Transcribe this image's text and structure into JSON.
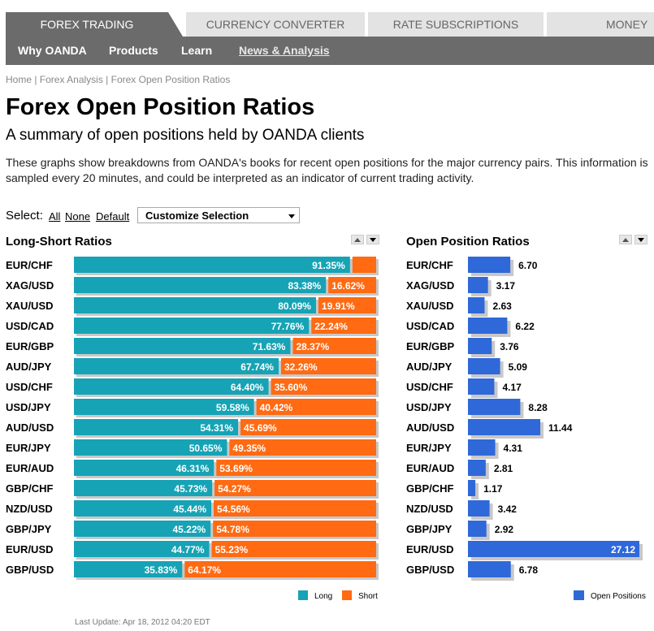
{
  "nav": {
    "tabs": [
      "FOREX TRADING",
      "CURRENCY CONVERTER",
      "RATE SUBSCRIPTIONS",
      "MONEY T"
    ],
    "subnav": [
      "Why OANDA",
      "Products",
      "Learn",
      "News & Analysis"
    ]
  },
  "breadcrumb": "Home | Forex Analysis | Forex Open Position Ratios",
  "page": {
    "title": "Forex Open Position Ratios",
    "subtitle": "A summary of open positions held by OANDA clients",
    "intro": "These graphs show breakdowns from OANDA's books for recent open positions for the major currency pairs. This information is sampled every 20 minutes, and could be interpreted as an indicator of current trading activity."
  },
  "select": {
    "label": "Select:",
    "all": "All",
    "none": "None",
    "default": "Default",
    "customize": "Customize Selection"
  },
  "colors": {
    "long": "#16a3b5",
    "short": "#ff6a12",
    "open": "#2f68d9",
    "shadow": "#c8c8c8"
  },
  "chart_data": [
    {
      "type": "bar",
      "title": "Long-Short Ratios",
      "categories": [
        "EUR/CHF",
        "XAG/USD",
        "XAU/USD",
        "USD/CAD",
        "EUR/GBP",
        "AUD/JPY",
        "USD/CHF",
        "USD/JPY",
        "AUD/USD",
        "EUR/JPY",
        "EUR/AUD",
        "GBP/CHF",
        "NZD/USD",
        "GBP/JPY",
        "EUR/USD",
        "GBP/USD"
      ],
      "series": [
        {
          "name": "Long",
          "values": [
            91.35,
            83.38,
            80.09,
            77.76,
            71.63,
            67.74,
            64.4,
            59.58,
            54.31,
            50.65,
            46.31,
            45.73,
            45.44,
            45.22,
            44.77,
            35.83
          ],
          "labels": [
            "91.35%",
            "83.38%",
            "80.09%",
            "77.76%",
            "71.63%",
            "67.74%",
            "64.40%",
            "59.58%",
            "54.31%",
            "50.65%",
            "46.31%",
            "45.73%",
            "45.44%",
            "45.22%",
            "44.77%",
            "35.83%"
          ]
        },
        {
          "name": "Short",
          "values": [
            8.65,
            16.62,
            19.91,
            22.24,
            28.37,
            32.26,
            35.6,
            40.42,
            45.69,
            49.35,
            53.69,
            54.27,
            54.56,
            54.78,
            55.23,
            64.17
          ],
          "labels": [
            "",
            "16.62%",
            "19.91%",
            "22.24%",
            "28.37%",
            "32.26%",
            "35.60%",
            "40.42%",
            "45.69%",
            "49.35%",
            "53.69%",
            "54.27%",
            "54.56%",
            "54.78%",
            "55.23%",
            "64.17%"
          ]
        }
      ],
      "stacked": true,
      "legend": "bottom-right"
    },
    {
      "type": "bar",
      "title": "Open Position Ratios",
      "categories": [
        "EUR/CHF",
        "XAG/USD",
        "XAU/USD",
        "USD/CAD",
        "EUR/GBP",
        "AUD/JPY",
        "USD/CHF",
        "USD/JPY",
        "AUD/USD",
        "EUR/JPY",
        "EUR/AUD",
        "GBP/CHF",
        "NZD/USD",
        "GBP/JPY",
        "EUR/USD",
        "GBP/USD"
      ],
      "series": [
        {
          "name": "Open Positions",
          "values": [
            6.7,
            3.17,
            2.63,
            6.22,
            3.76,
            5.09,
            4.17,
            8.28,
            11.44,
            4.31,
            2.81,
            1.17,
            3.42,
            2.92,
            27.12,
            6.78
          ],
          "labels": [
            "6.70",
            "3.17",
            "2.63",
            "6.22",
            "3.76",
            "5.09",
            "4.17",
            "8.28",
            "11.44",
            "4.31",
            "2.81",
            "1.17",
            "3.42",
            "2.92",
            "27.12",
            "6.78"
          ]
        }
      ],
      "legend": "bottom-right"
    }
  ],
  "footer": "Last Update: Apr 18, 2012 04:20 EDT"
}
